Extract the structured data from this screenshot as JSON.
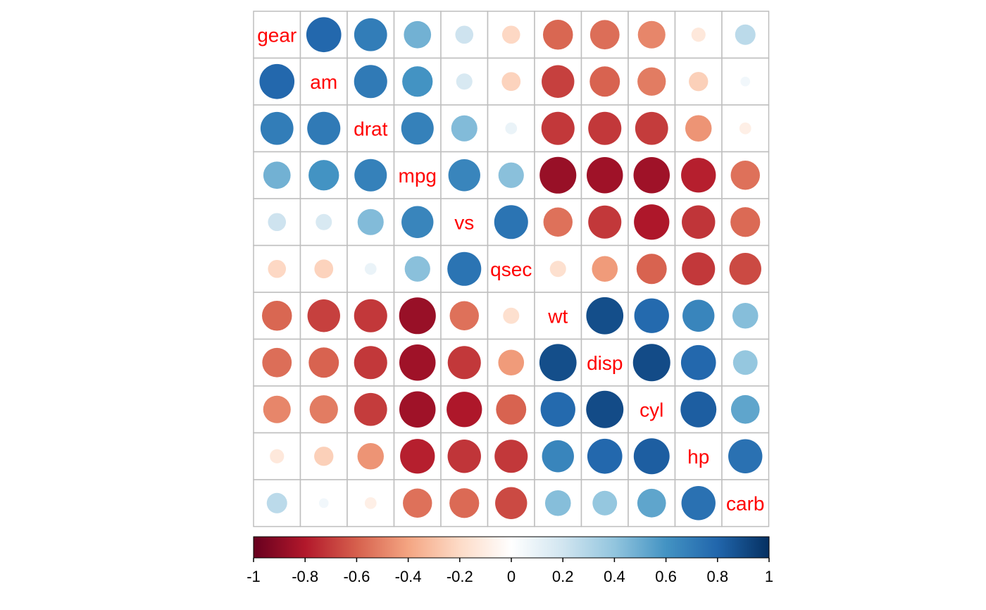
{
  "chart_data": {
    "type": "heatmap",
    "title": "",
    "variables": [
      "gear",
      "am",
      "drat",
      "mpg",
      "vs",
      "qsec",
      "wt",
      "disp",
      "cyl",
      "hp",
      "carb"
    ],
    "matrix": [
      [
        1.0,
        0.79,
        0.7,
        0.48,
        0.21,
        -0.21,
        -0.58,
        -0.56,
        -0.49,
        -0.13,
        0.27
      ],
      [
        0.79,
        1.0,
        0.71,
        0.6,
        0.17,
        -0.23,
        -0.69,
        -0.59,
        -0.52,
        -0.24,
        0.06
      ],
      [
        0.7,
        0.71,
        1.0,
        0.68,
        0.44,
        0.09,
        -0.71,
        -0.71,
        -0.7,
        -0.45,
        -0.09
      ],
      [
        0.48,
        0.6,
        0.68,
        1.0,
        0.66,
        0.42,
        -0.87,
        -0.85,
        -0.85,
        -0.78,
        -0.55
      ],
      [
        0.21,
        0.17,
        0.44,
        0.66,
        1.0,
        0.74,
        -0.55,
        -0.71,
        -0.81,
        -0.72,
        -0.57
      ],
      [
        -0.21,
        -0.23,
        0.09,
        0.42,
        0.74,
        1.0,
        -0.17,
        -0.43,
        -0.59,
        -0.71,
        -0.66
      ],
      [
        -0.58,
        -0.69,
        -0.71,
        -0.87,
        -0.55,
        -0.17,
        1.0,
        0.89,
        0.78,
        0.66,
        0.43
      ],
      [
        -0.56,
        -0.59,
        -0.71,
        -0.85,
        -0.71,
        -0.43,
        0.89,
        1.0,
        0.9,
        0.79,
        0.39
      ],
      [
        -0.49,
        -0.52,
        -0.7,
        -0.85,
        -0.81,
        -0.59,
        0.78,
        0.9,
        1.0,
        0.83,
        0.53
      ],
      [
        -0.13,
        -0.24,
        -0.45,
        -0.78,
        -0.72,
        -0.71,
        0.66,
        0.79,
        0.83,
        1.0,
        0.75
      ],
      [
        0.27,
        0.06,
        -0.09,
        -0.55,
        -0.57,
        -0.66,
        0.43,
        0.39,
        0.53,
        0.75,
        1.0
      ]
    ],
    "colorbar": {
      "range": [
        -1,
        1
      ],
      "tick_values": [
        -1,
        -0.8,
        -0.6,
        -0.4,
        -0.2,
        0,
        0.2,
        0.4,
        0.6,
        0.8,
        1
      ],
      "tick_labels": [
        "-1",
        "-0.8",
        "-0.6",
        "-0.4",
        "-0.2",
        "0",
        "0.2",
        "0.4",
        "0.6",
        "0.8",
        "1"
      ],
      "colors": [
        "#67001F",
        "#B2182B",
        "#D6604D",
        "#F4A582",
        "#FDDBC7",
        "#FFFFFF",
        "#D1E5F0",
        "#92C5DE",
        "#4393C3",
        "#2166AC",
        "#053061"
      ]
    },
    "grid_color": "#BEBEBE",
    "label_color": "#FF0000",
    "diagonal": "labels",
    "glyph": "circle"
  }
}
